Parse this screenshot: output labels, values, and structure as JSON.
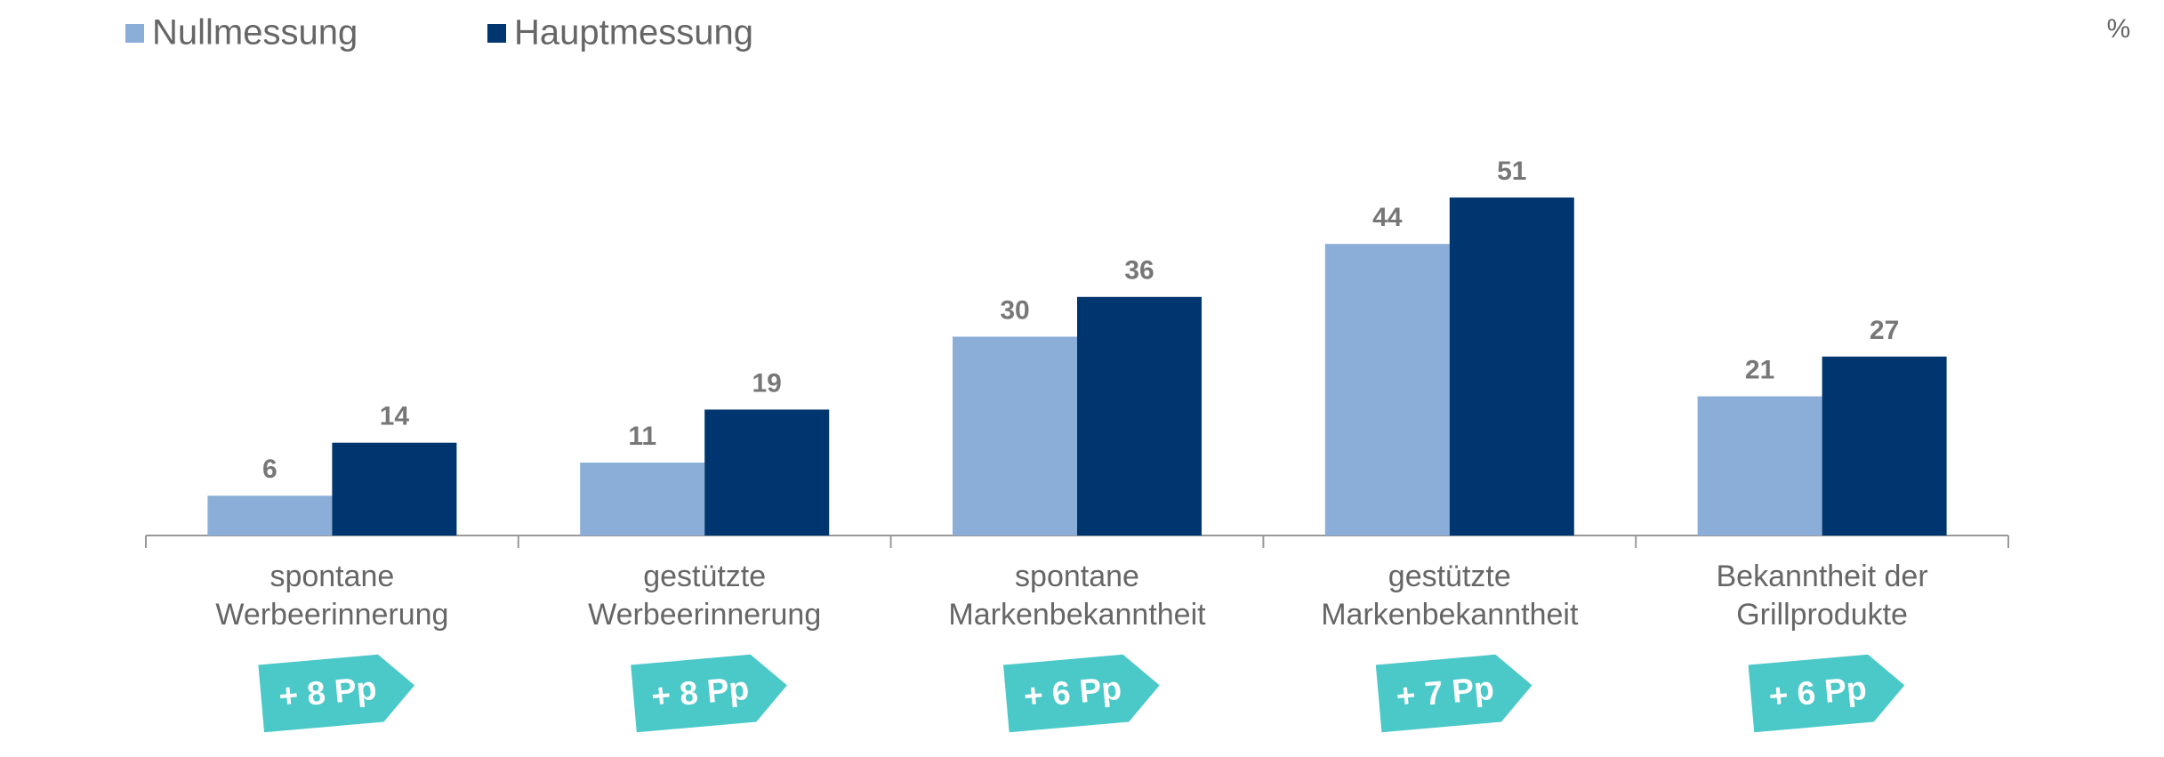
{
  "chart_data": {
    "type": "bar",
    "unit": "%",
    "categories": [
      "spontane\nWerbeerinnerung",
      "gestützte\nWerbeerinnerung",
      "spontane\nMarkenbekanntheit",
      "gestützte\nMarkenbekanntheit",
      "Bekanntheit der\nGrillprodukte"
    ],
    "series": [
      {
        "name": "Nullmessung",
        "color": "#8aaed8",
        "values": [
          6,
          11,
          30,
          44,
          21
        ]
      },
      {
        "name": "Hauptmessung",
        "color": "#00366f",
        "values": [
          14,
          19,
          36,
          51,
          27
        ]
      }
    ],
    "annotations": [
      "+ 8 Pp",
      "+ 8 Pp",
      "+ 6 Pp",
      "+ 7 Pp",
      "+ 6 Pp"
    ],
    "annotation_color": "#4bc8c8",
    "ylim": [
      0,
      60
    ],
    "legend": "top-left"
  }
}
